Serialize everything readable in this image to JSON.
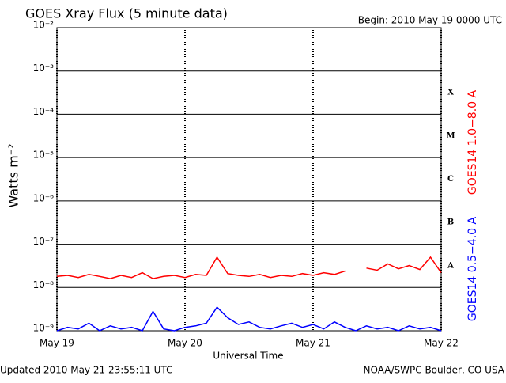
{
  "chart_data": {
    "type": "line",
    "title": "GOES Xray Flux (5 minute data)",
    "begin": "Begin:  2010 May 19 0000 UTC",
    "y_label": "Watts m⁻²",
    "x_label": "Universal Time",
    "updated": "Updated 2010 May 21 23:55:11 UTC",
    "credit": "NOAA/SWPC Boulder, CO USA",
    "flare_classes": [
      "A",
      "B",
      "C",
      "M",
      "X"
    ],
    "log_y": true,
    "grid": true,
    "xlim": [
      0,
      72
    ],
    "xticks": [
      {
        "value": 0,
        "label": "May 19"
      },
      {
        "value": 24,
        "label": "May 20"
      },
      {
        "value": 48,
        "label": "May 21"
      },
      {
        "value": 72,
        "label": "May 22"
      }
    ],
    "ylim": [
      1e-09,
      0.01
    ],
    "yticks": [
      {
        "value": 1e-09,
        "label": "10⁻⁹"
      },
      {
        "value": 1e-08,
        "label": "10⁻⁸"
      },
      {
        "value": 1e-07,
        "label": "10⁻⁷"
      },
      {
        "value": 1e-06,
        "label": "10⁻⁶"
      },
      {
        "value": 1e-05,
        "label": "10⁻⁵"
      },
      {
        "value": 0.0001,
        "label": "10⁻⁴"
      },
      {
        "value": 0.001,
        "label": "10⁻³"
      },
      {
        "value": 0.01,
        "label": "10⁻²"
      }
    ],
    "x": [
      0,
      2,
      4,
      6,
      8,
      10,
      12,
      14,
      16,
      18,
      20,
      22,
      24,
      26,
      28,
      30,
      32,
      34,
      36,
      38,
      40,
      42,
      44,
      46,
      48,
      50,
      52,
      54,
      56,
      58,
      60,
      62,
      64,
      66,
      68,
      70,
      72
    ],
    "series": [
      {
        "name": "GOES14 1.0−8.0 A",
        "color": "#ff0000",
        "values": [
          1.8e-08,
          1.9e-08,
          1.7e-08,
          2e-08,
          1.8e-08,
          1.6e-08,
          1.9e-08,
          1.7e-08,
          2.2e-08,
          1.6e-08,
          1.8e-08,
          1.9e-08,
          1.7e-08,
          2e-08,
          1.9e-08,
          5e-08,
          2.1e-08,
          1.9e-08,
          1.8e-08,
          2e-08,
          1.7e-08,
          1.9e-08,
          1.8e-08,
          2.1e-08,
          1.9e-08,
          2.2e-08,
          2e-08,
          2.4e-08,
          null,
          2.8e-08,
          2.5e-08,
          3.5e-08,
          2.7e-08,
          3.2e-08,
          2.6e-08,
          5e-08,
          2.2e-08
        ]
      },
      {
        "name": "GOES14 0.5−4.0 A",
        "color": "#0000ff",
        "values": [
          1e-09,
          1.2e-09,
          1.1e-09,
          1.5e-09,
          1e-09,
          1.3e-09,
          1.1e-09,
          1.2e-09,
          1e-09,
          2.8e-09,
          1.1e-09,
          1e-09,
          1.2e-09,
          1.3e-09,
          1.5e-09,
          3.5e-09,
          2e-09,
          1.4e-09,
          1.6e-09,
          1.2e-09,
          1.1e-09,
          1.3e-09,
          1.5e-09,
          1.2e-09,
          1.4e-09,
          1.1e-09,
          1.6e-09,
          1.2e-09,
          1e-09,
          1.3e-09,
          1.1e-09,
          1.2e-09,
          1e-09,
          1.3e-09,
          1.1e-09,
          1.2e-09,
          1e-09
        ]
      }
    ]
  }
}
